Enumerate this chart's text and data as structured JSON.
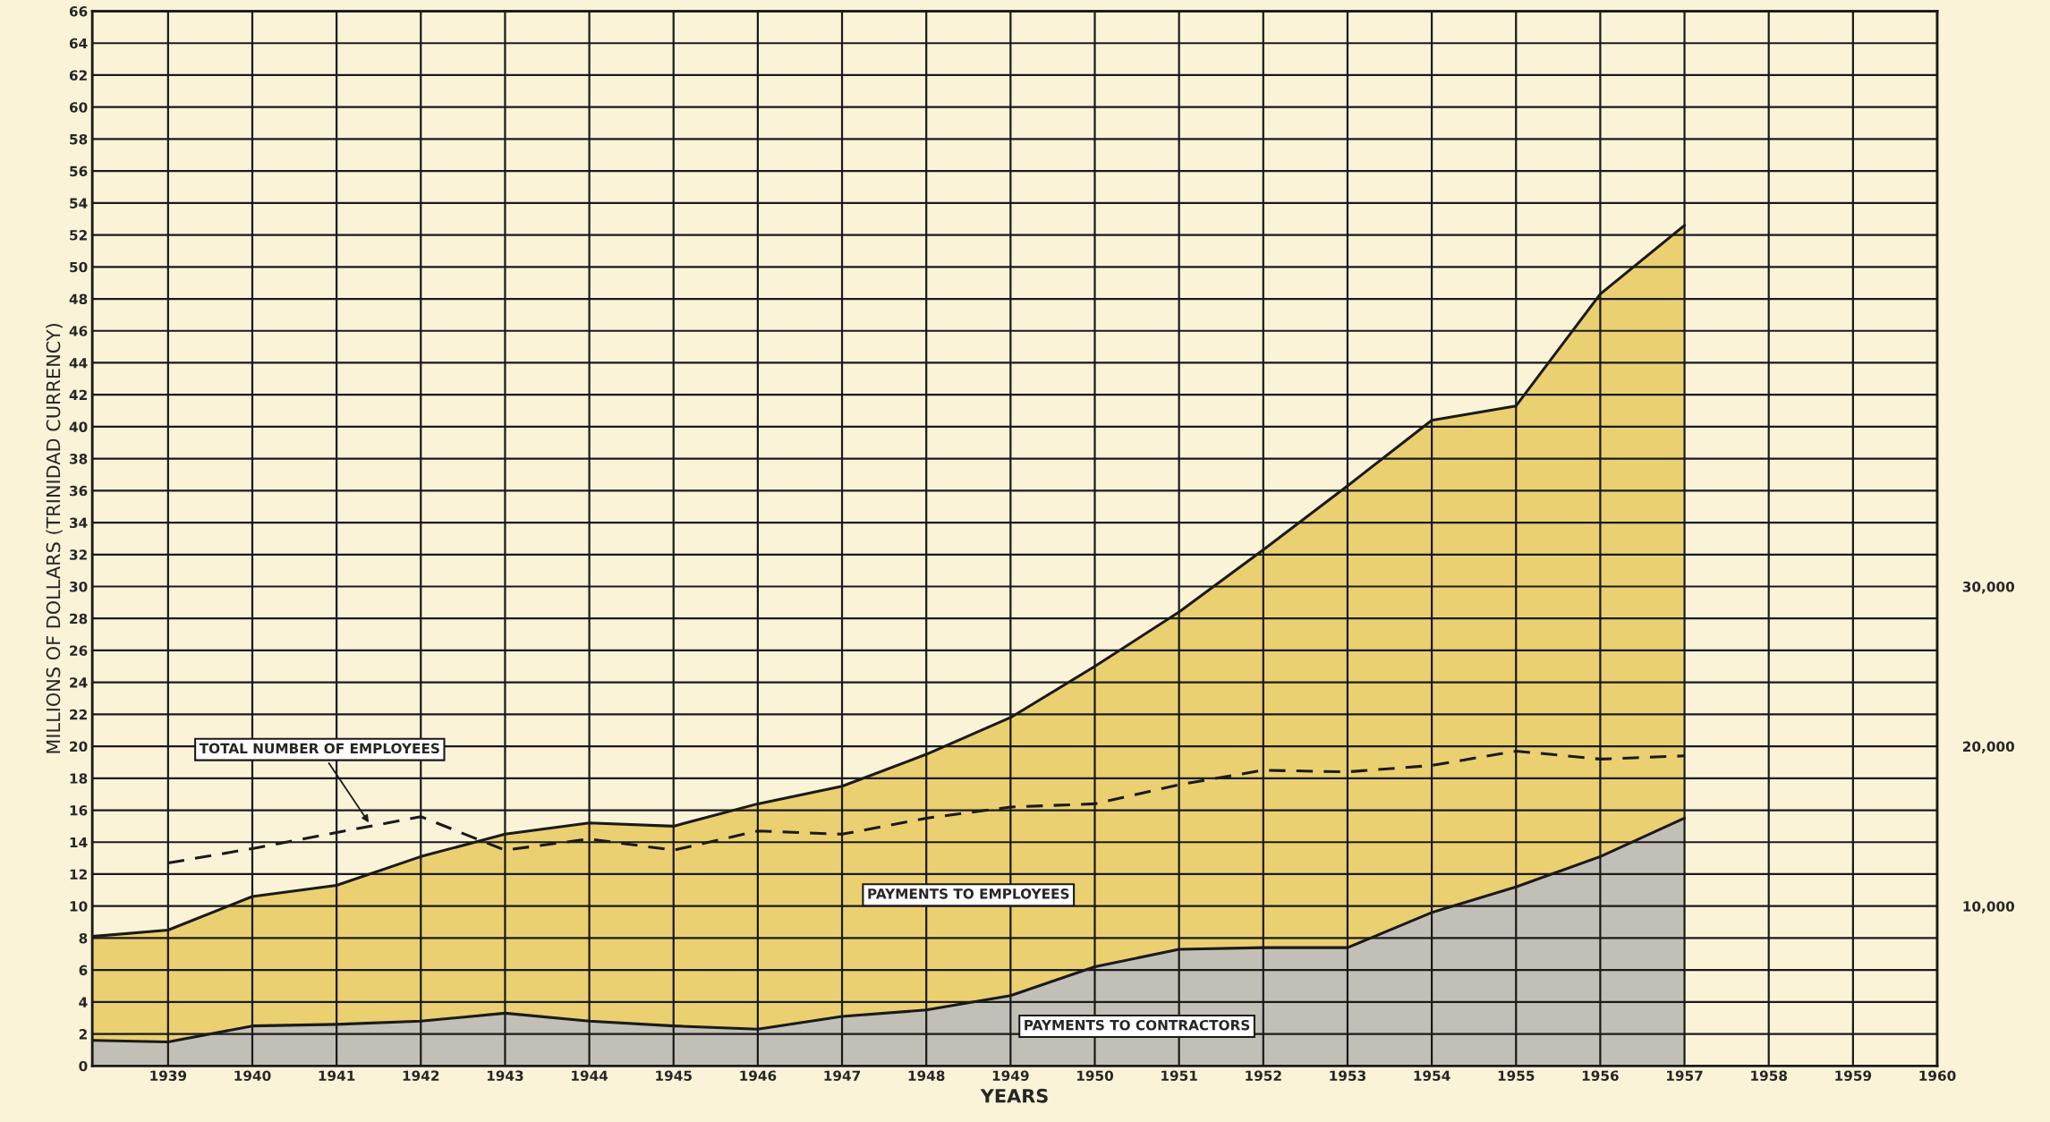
{
  "chart_data": {
    "type": "area",
    "stacked": true,
    "xlabel": "YEARS",
    "ylabel": "MILLIONS OF DOLLARS (TRINIDAD CURRENCY)",
    "x": [
      1938.1,
      1939,
      1940,
      1941,
      1942,
      1943,
      1944,
      1945,
      1946,
      1947,
      1948,
      1949,
      1950,
      1951,
      1952,
      1953,
      1954,
      1955,
      1956,
      1957
    ],
    "series": [
      {
        "name": "PAYMENTS TO CONTRACTORS",
        "color": "#c2c0b6",
        "values": [
          1.6,
          1.5,
          2.5,
          2.6,
          2.8,
          3.3,
          2.8,
          2.5,
          2.3,
          3.1,
          3.5,
          4.4,
          6.2,
          7.3,
          7.4,
          7.4,
          9.6,
          11.2,
          13.1,
          15.5
        ]
      },
      {
        "name": "PAYMENTS TO EMPLOYEES",
        "color": "#ebd071",
        "values": [
          6.5,
          7.0,
          8.1,
          8.7,
          10.3,
          11.2,
          12.4,
          12.5,
          14.1,
          14.4,
          16.0,
          17.4,
          18.8,
          21.1,
          24.9,
          28.9,
          30.8,
          30.1,
          35.2,
          37.1
        ]
      },
      {
        "name": "TOTAL NUMBER OF EMPLOYEES",
        "type": "line",
        "axis": "y2",
        "color": "#1a1a1a",
        "line_style": "dashed",
        "x": [
          1939,
          1940,
          1941,
          1942,
          1943,
          1944,
          1945,
          1946,
          1947,
          1948,
          1949,
          1950,
          1951,
          1952,
          1953,
          1954,
          1955,
          1956,
          1957
        ],
        "values": [
          12700,
          13600,
          14600,
          15600,
          13500,
          14200,
          13500,
          14700,
          14500,
          15500,
          16200,
          16400,
          17600,
          18500,
          18400,
          18800,
          19700,
          19200,
          19400
        ]
      }
    ],
    "xlim": [
      1938.1,
      1960
    ],
    "xticks": [
      1939,
      1940,
      1941,
      1942,
      1943,
      1944,
      1945,
      1946,
      1947,
      1948,
      1949,
      1950,
      1951,
      1952,
      1953,
      1954,
      1955,
      1956,
      1957,
      1958,
      1959,
      1960
    ],
    "ylim": [
      0,
      66
    ],
    "yticks": [
      0,
      2,
      4,
      6,
      8,
      10,
      12,
      14,
      16,
      18,
      20,
      22,
      24,
      26,
      28,
      30,
      32,
      34,
      36,
      38,
      40,
      42,
      44,
      46,
      48,
      50,
      52,
      54,
      56,
      58,
      60,
      62,
      64,
      66
    ],
    "y2lim": [
      0,
      66000
    ],
    "y2ticks": [
      {
        "value": 10000,
        "label": "10,000"
      },
      {
        "value": 20000,
        "label": "20,000"
      },
      {
        "value": 30000,
        "label": "30,000"
      }
    ],
    "grid": true,
    "legend": false
  }
}
